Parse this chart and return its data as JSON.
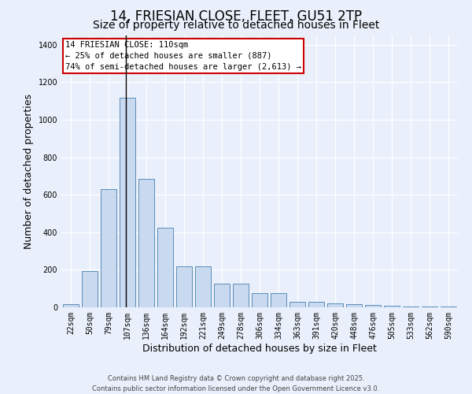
{
  "title": "14, FRIESIAN CLOSE, FLEET, GU51 2TP",
  "subtitle": "Size of property relative to detached houses in Fleet",
  "xlabel": "Distribution of detached houses by size in Fleet",
  "ylabel": "Number of detached properties",
  "categories": [
    "22sqm",
    "50sqm",
    "79sqm",
    "107sqm",
    "136sqm",
    "164sqm",
    "192sqm",
    "221sqm",
    "249sqm",
    "278sqm",
    "306sqm",
    "334sqm",
    "363sqm",
    "391sqm",
    "420sqm",
    "448sqm",
    "476sqm",
    "505sqm",
    "533sqm",
    "562sqm",
    "590sqm"
  ],
  "values": [
    15,
    195,
    630,
    1120,
    685,
    425,
    220,
    220,
    125,
    125,
    75,
    75,
    28,
    28,
    22,
    15,
    12,
    8,
    3,
    3,
    3
  ],
  "bar_color": "#c9d9f0",
  "bar_edge_color": "#5b8db8",
  "background_color": "#eaf0fb",
  "grid_color": "#ffffff",
  "annotation_text": "14 FRIESIAN CLOSE: 110sqm\n← 25% of detached houses are smaller (887)\n74% of semi-detached houses are larger (2,613) →",
  "annotation_box_color": "#ffffff",
  "annotation_box_edge": "#cc0000",
  "vline_bin_index": 3,
  "ylim": [
    0,
    1450
  ],
  "yticks": [
    0,
    200,
    400,
    600,
    800,
    1000,
    1200,
    1400
  ],
  "footer1": "Contains HM Land Registry data © Crown copyright and database right 2025.",
  "footer2": "Contains public sector information licensed under the Open Government Licence v3.0.",
  "title_fontsize": 12,
  "subtitle_fontsize": 10,
  "tick_fontsize": 7,
  "ylabel_fontsize": 9,
  "xlabel_fontsize": 9,
  "annotation_fontsize": 7.5,
  "footer_fontsize": 6
}
